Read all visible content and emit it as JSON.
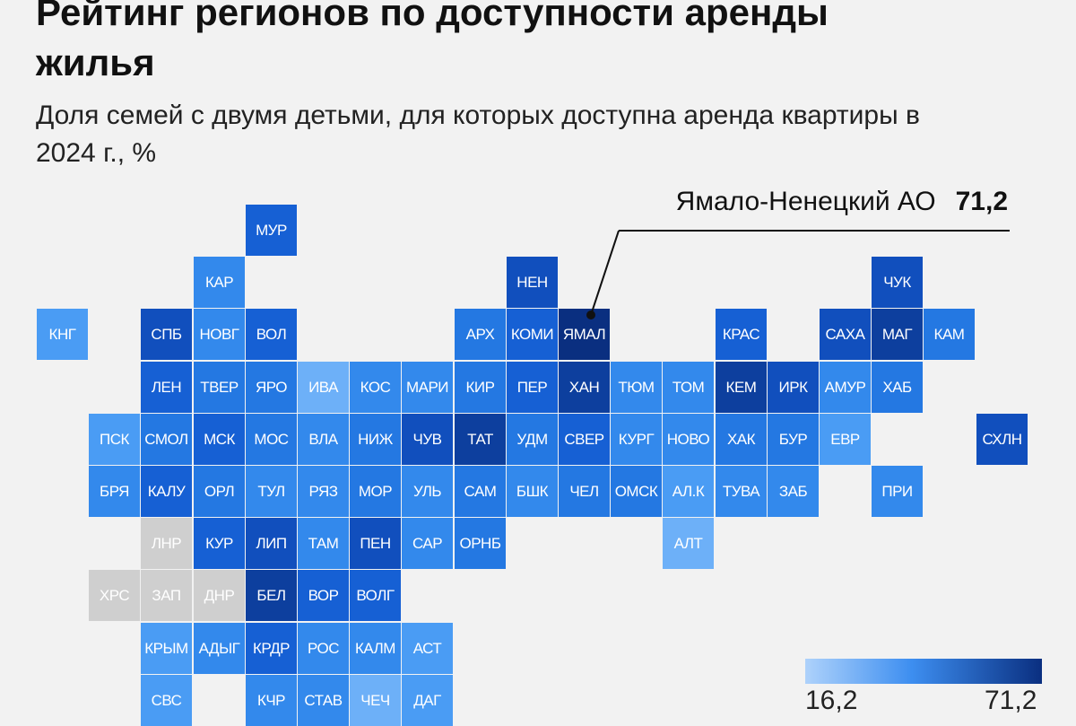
{
  "title": "Рейтинг регионов по доступности аренды жилья",
  "subtitle": "Доля семей с двумя детьми, для которых доступна аренда квартиры в 2024 г., %",
  "callout": {
    "region": "Ямало-Ненецкий АО",
    "value": "71,2"
  },
  "legend": {
    "min": "16,2",
    "max": "71,2",
    "color_min": "#aed2fb",
    "color_max": "#0a2f80"
  },
  "colors": {
    "d6": "#0a2f80",
    "d5": "#0d3f9e",
    "d4": "#114fbd",
    "d3": "#1660d4",
    "m2": "#2478e2",
    "m1": "#3389ec",
    "l1": "#4a9cf4",
    "l2": "#6db0f8",
    "l3": "#8cc3fa",
    "na": "#cfcfcf"
  },
  "tiles": [
    {
      "label": "МУР",
      "col": 4,
      "row": 0,
      "shade": "d3"
    },
    {
      "label": "КАР",
      "col": 3,
      "row": 1,
      "shade": "m1"
    },
    {
      "label": "НЕН",
      "col": 9,
      "row": 1,
      "shade": "d4"
    },
    {
      "label": "ЧУК",
      "col": 16,
      "row": 1,
      "shade": "d4"
    },
    {
      "label": "КНГ",
      "col": 0,
      "row": 2,
      "shade": "l1"
    },
    {
      "label": "СПБ",
      "col": 2,
      "row": 2,
      "shade": "d4"
    },
    {
      "label": "НОВГ",
      "col": 3,
      "row": 2,
      "shade": "m1"
    },
    {
      "label": "ВОЛ",
      "col": 4,
      "row": 2,
      "shade": "d3"
    },
    {
      "label": "АРХ",
      "col": 8,
      "row": 2,
      "shade": "m2"
    },
    {
      "label": "КОМИ",
      "col": 9,
      "row": 2,
      "shade": "d3"
    },
    {
      "label": "ЯМАЛ",
      "col": 10,
      "row": 2,
      "shade": "d6"
    },
    {
      "label": "КРАС",
      "col": 13,
      "row": 2,
      "shade": "d3"
    },
    {
      "label": "САХА",
      "col": 15,
      "row": 2,
      "shade": "d4"
    },
    {
      "label": "МАГ",
      "col": 16,
      "row": 2,
      "shade": "d5"
    },
    {
      "label": "КАМ",
      "col": 17,
      "row": 2,
      "shade": "m2"
    },
    {
      "label": "ЛЕН",
      "col": 2,
      "row": 3,
      "shade": "d3"
    },
    {
      "label": "ТВЕР",
      "col": 3,
      "row": 3,
      "shade": "m2"
    },
    {
      "label": "ЯРО",
      "col": 4,
      "row": 3,
      "shade": "m2"
    },
    {
      "label": "ИВА",
      "col": 5,
      "row": 3,
      "shade": "l2"
    },
    {
      "label": "КОС",
      "col": 6,
      "row": 3,
      "shade": "m1"
    },
    {
      "label": "МАРИ",
      "col": 7,
      "row": 3,
      "shade": "m1"
    },
    {
      "label": "КИР",
      "col": 8,
      "row": 3,
      "shade": "m2"
    },
    {
      "label": "ПЕР",
      "col": 9,
      "row": 3,
      "shade": "d3"
    },
    {
      "label": "ХАН",
      "col": 10,
      "row": 3,
      "shade": "d5"
    },
    {
      "label": "ТЮМ",
      "col": 11,
      "row": 3,
      "shade": "m1"
    },
    {
      "label": "ТОМ",
      "col": 12,
      "row": 3,
      "shade": "m1"
    },
    {
      "label": "КЕМ",
      "col": 13,
      "row": 3,
      "shade": "d5"
    },
    {
      "label": "ИРК",
      "col": 14,
      "row": 3,
      "shade": "d4"
    },
    {
      "label": "АМУР",
      "col": 15,
      "row": 3,
      "shade": "m1"
    },
    {
      "label": "ХАБ",
      "col": 16,
      "row": 3,
      "shade": "m2"
    },
    {
      "label": "ПСК",
      "col": 1,
      "row": 4,
      "shade": "l1"
    },
    {
      "label": "СМОЛ",
      "col": 2,
      "row": 4,
      "shade": "m2"
    },
    {
      "label": "МСК",
      "col": 3,
      "row": 4,
      "shade": "d3"
    },
    {
      "label": "МОС",
      "col": 4,
      "row": 4,
      "shade": "m2"
    },
    {
      "label": "ВЛА",
      "col": 5,
      "row": 4,
      "shade": "m1"
    },
    {
      "label": "НИЖ",
      "col": 6,
      "row": 4,
      "shade": "m2"
    },
    {
      "label": "ЧУВ",
      "col": 7,
      "row": 4,
      "shade": "d4"
    },
    {
      "label": "ТАТ",
      "col": 8,
      "row": 4,
      "shade": "d5"
    },
    {
      "label": "УДМ",
      "col": 9,
      "row": 4,
      "shade": "m2"
    },
    {
      "label": "СВЕР",
      "col": 10,
      "row": 4,
      "shade": "d3"
    },
    {
      "label": "КУРГ",
      "col": 11,
      "row": 4,
      "shade": "m1"
    },
    {
      "label": "НОВО",
      "col": 12,
      "row": 4,
      "shade": "m1"
    },
    {
      "label": "ХАК",
      "col": 13,
      "row": 4,
      "shade": "m2"
    },
    {
      "label": "БУР",
      "col": 14,
      "row": 4,
      "shade": "m2"
    },
    {
      "label": "ЕВР",
      "col": 15,
      "row": 4,
      "shade": "l1"
    },
    {
      "label": "СХЛН",
      "col": 18,
      "row": 4,
      "shade": "d4"
    },
    {
      "label": "БРЯ",
      "col": 1,
      "row": 5,
      "shade": "m1"
    },
    {
      "label": "КАЛУ",
      "col": 2,
      "row": 5,
      "shade": "d3"
    },
    {
      "label": "ОРЛ",
      "col": 3,
      "row": 5,
      "shade": "m2"
    },
    {
      "label": "ТУЛ",
      "col": 4,
      "row": 5,
      "shade": "m1"
    },
    {
      "label": "РЯЗ",
      "col": 5,
      "row": 5,
      "shade": "m1"
    },
    {
      "label": "МОР",
      "col": 6,
      "row": 5,
      "shade": "m2"
    },
    {
      "label": "УЛЬ",
      "col": 7,
      "row": 5,
      "shade": "m1"
    },
    {
      "label": "САМ",
      "col": 8,
      "row": 5,
      "shade": "m2"
    },
    {
      "label": "БШК",
      "col": 9,
      "row": 5,
      "shade": "m1"
    },
    {
      "label": "ЧЕЛ",
      "col": 10,
      "row": 5,
      "shade": "m2"
    },
    {
      "label": "ОМСК",
      "col": 11,
      "row": 5,
      "shade": "m2"
    },
    {
      "label": "АЛ.К",
      "col": 12,
      "row": 5,
      "shade": "l1"
    },
    {
      "label": "ТУВА",
      "col": 13,
      "row": 5,
      "shade": "m1"
    },
    {
      "label": "ЗАБ",
      "col": 14,
      "row": 5,
      "shade": "m1"
    },
    {
      "label": "ПРИ",
      "col": 16,
      "row": 5,
      "shade": "m1"
    },
    {
      "label": "ЛНР",
      "col": 2,
      "row": 6,
      "shade": "na"
    },
    {
      "label": "КУР",
      "col": 3,
      "row": 6,
      "shade": "d3"
    },
    {
      "label": "ЛИП",
      "col": 4,
      "row": 6,
      "shade": "d4"
    },
    {
      "label": "ТАМ",
      "col": 5,
      "row": 6,
      "shade": "m1"
    },
    {
      "label": "ПЕН",
      "col": 6,
      "row": 6,
      "shade": "d4"
    },
    {
      "label": "САР",
      "col": 7,
      "row": 6,
      "shade": "m1"
    },
    {
      "label": "ОРНБ",
      "col": 8,
      "row": 6,
      "shade": "m2"
    },
    {
      "label": "АЛТ",
      "col": 12,
      "row": 6,
      "shade": "l2"
    },
    {
      "label": "ХРС",
      "col": 1,
      "row": 7,
      "shade": "na"
    },
    {
      "label": "ЗАП",
      "col": 2,
      "row": 7,
      "shade": "na"
    },
    {
      "label": "ДНР",
      "col": 3,
      "row": 7,
      "shade": "na"
    },
    {
      "label": "БЕЛ",
      "col": 4,
      "row": 7,
      "shade": "d5"
    },
    {
      "label": "ВОР",
      "col": 5,
      "row": 7,
      "shade": "d3"
    },
    {
      "label": "ВОЛГ",
      "col": 6,
      "row": 7,
      "shade": "d3"
    },
    {
      "label": "КРЫМ",
      "col": 2,
      "row": 8,
      "shade": "l1"
    },
    {
      "label": "АДЫГ",
      "col": 3,
      "row": 8,
      "shade": "m1"
    },
    {
      "label": "КРДР",
      "col": 4,
      "row": 8,
      "shade": "d3"
    },
    {
      "label": "РОС",
      "col": 5,
      "row": 8,
      "shade": "m1"
    },
    {
      "label": "КАЛМ",
      "col": 6,
      "row": 8,
      "shade": "m1"
    },
    {
      "label": "АСТ",
      "col": 7,
      "row": 8,
      "shade": "l1"
    },
    {
      "label": "СВС",
      "col": 2,
      "row": 9,
      "shade": "l1"
    },
    {
      "label": "КЧР",
      "col": 4,
      "row": 9,
      "shade": "m1"
    },
    {
      "label": "СТАВ",
      "col": 5,
      "row": 9,
      "shade": "m1"
    },
    {
      "label": "ЧЕЧ",
      "col": 6,
      "row": 9,
      "shade": "l2"
    },
    {
      "label": "ДАГ",
      "col": 7,
      "row": 9,
      "shade": "l1"
    }
  ]
}
